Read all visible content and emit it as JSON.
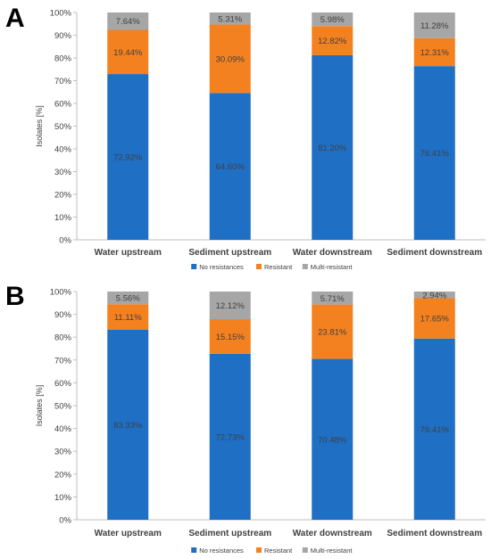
{
  "chart_data": [
    {
      "type": "bar",
      "stacked": true,
      "panel_label": "A",
      "categories": [
        "Water upstream",
        "Sediment upstream",
        "Water downstream",
        "Sediment downstream"
      ],
      "series": [
        {
          "name": "No resistances",
          "color": "#1f6fc5",
          "values": [
            72.92,
            64.6,
            81.2,
            76.41
          ],
          "labels": [
            "72.92%",
            "64.60%",
            "81.20%",
            "76.41%"
          ]
        },
        {
          "name": "Resistant",
          "color": "#f4811f",
          "values": [
            19.44,
            30.09,
            12.82,
            12.31
          ],
          "labels": [
            "19.44%",
            "30.09%",
            "12.82%",
            "12.31%"
          ]
        },
        {
          "name": "Multi-resistant",
          "color": "#a6a6a6",
          "values": [
            7.64,
            5.31,
            5.98,
            11.28
          ],
          "labels": [
            "7.64%",
            "5.31%",
            "5.98%",
            "11.28%"
          ]
        }
      ],
      "ylabel": "Isolates [%]",
      "ylim": [
        0,
        100
      ],
      "yticks": [
        "0%",
        "10%",
        "20%",
        "30%",
        "40%",
        "50%",
        "60%",
        "70%",
        "80%",
        "90%",
        "100%"
      ],
      "legend_position": "bottom"
    },
    {
      "type": "bar",
      "stacked": true,
      "panel_label": "B",
      "categories": [
        "Water upstream",
        "Sediment upstream",
        "Water downstream",
        "Sediment downstream"
      ],
      "series": [
        {
          "name": "No resistances",
          "color": "#1f6fc5",
          "values": [
            83.33,
            72.73,
            70.48,
            79.41
          ],
          "labels": [
            "83.33%",
            "72.73%",
            "70.48%",
            "79.41%"
          ]
        },
        {
          "name": "Resistant",
          "color": "#f4811f",
          "values": [
            11.11,
            15.15,
            23.81,
            17.65
          ],
          "labels": [
            "11.11%",
            "15.15%",
            "23.81%",
            "17.65%"
          ]
        },
        {
          "name": "Multi-resistant",
          "color": "#a6a6a6",
          "values": [
            5.56,
            12.12,
            5.71,
            2.94
          ],
          "labels": [
            "5.56%",
            "12.12%",
            "5.71%",
            "2.94%"
          ]
        }
      ],
      "ylabel": "Isolates [%]",
      "ylim": [
        0,
        100
      ],
      "yticks": [
        "0%",
        "10%",
        "20%",
        "30%",
        "40%",
        "50%",
        "60%",
        "70%",
        "80%",
        "90%",
        "100%"
      ],
      "legend_position": "bottom"
    }
  ]
}
